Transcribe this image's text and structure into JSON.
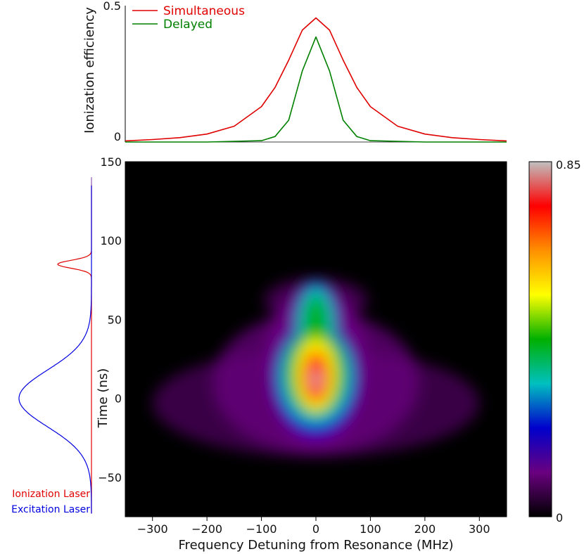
{
  "chart_data": [
    {
      "type": "line",
      "ylabel": "Ionization efficiency",
      "ytick_labels": [
        "0",
        "0.5"
      ],
      "ylim": [
        0,
        0.5
      ],
      "xlim": [
        -350,
        350
      ],
      "legend_position": "top-left",
      "series": [
        {
          "name": "Simultaneous",
          "color": "#e00000",
          "x": [
            -350,
            -300,
            -250,
            -200,
            -150,
            -100,
            -75,
            -50,
            -25,
            0,
            25,
            50,
            75,
            100,
            150,
            200,
            250,
            300,
            350
          ],
          "y": [
            0.004,
            0.009,
            0.016,
            0.029,
            0.058,
            0.13,
            0.2,
            0.3,
            0.41,
            0.455,
            0.41,
            0.3,
            0.2,
            0.13,
            0.058,
            0.029,
            0.016,
            0.009,
            0.004
          ]
        },
        {
          "name": "Delayed",
          "color": "#008000",
          "x": [
            -350,
            -200,
            -100,
            -75,
            -50,
            -25,
            0,
            25,
            50,
            75,
            100,
            200,
            350
          ],
          "y": [
            0.0,
            0.0,
            0.005,
            0.02,
            0.08,
            0.26,
            0.385,
            0.26,
            0.08,
            0.02,
            0.005,
            0.0,
            0.0
          ]
        }
      ]
    },
    {
      "type": "heatmap",
      "xlabel": "Frequency Detuning from Resonance (MHz)",
      "ylabel": "Time (ns)",
      "xlim": [
        -350,
        350
      ],
      "ylim": [
        -75,
        150
      ],
      "xticks": [
        -300,
        -200,
        -100,
        0,
        100,
        200,
        300
      ],
      "xtick_labels": [
        "−300",
        "−200",
        "−100",
        "0",
        "100",
        "200",
        "300"
      ],
      "yticks": [
        -50,
        0,
        50,
        100,
        150
      ],
      "ytick_labels": [
        "−50",
        "0",
        "50",
        "100",
        "150"
      ],
      "colorbar": {
        "min": 0,
        "max": 0.85,
        "min_label": "0",
        "max_label": "0.85",
        "colors": [
          "#000000",
          "#6a0080",
          "#0000cc",
          "#00c0c0",
          "#00b000",
          "#ffff00",
          "#ff9000",
          "#ff0000",
          "#c0c0c0"
        ]
      },
      "peak": {
        "x": 0,
        "y": 12,
        "value": 0.85
      }
    },
    {
      "type": "line",
      "orientation": "vertical",
      "ylim": [
        -75,
        150
      ],
      "series": [
        {
          "name": "Ionization Laser",
          "color": "#e00000",
          "center": 85,
          "width_ns": 2.5
        },
        {
          "name": "Excitation Laser",
          "color": "#0000e0",
          "center": 0,
          "width_ns": 18
        }
      ]
    }
  ]
}
